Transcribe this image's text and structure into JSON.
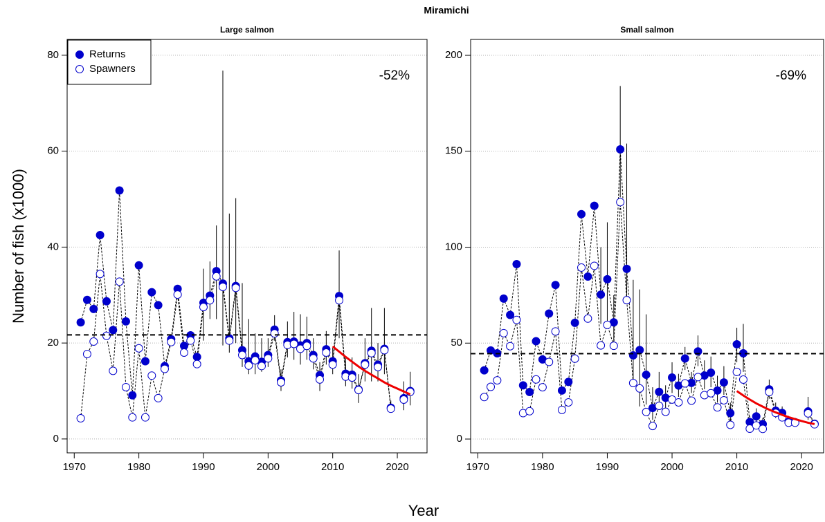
{
  "title": "Miramichi",
  "xlabel": "Year",
  "ylabel": "Number of fish (x1000)",
  "chart_data": [
    {
      "type": "line",
      "title": "Large salmon",
      "annotation": "-52%",
      "legend": "top-left",
      "grid": true,
      "xlim": [
        1968.9,
        2024.6
      ],
      "ylim": [
        -2.9,
        83.3
      ],
      "xticks": [
        1970,
        1980,
        1990,
        2000,
        2010,
        2020
      ],
      "yticks": [
        0,
        20,
        40,
        60,
        80
      ],
      "x": [
        1971,
        1972,
        1973,
        1974,
        1975,
        1976,
        1977,
        1978,
        1979,
        1980,
        1981,
        1982,
        1983,
        1984,
        1985,
        1986,
        1987,
        1988,
        1989,
        1990,
        1991,
        1992,
        1993,
        1994,
        1995,
        1996,
        1997,
        1998,
        1999,
        2000,
        2001,
        2002,
        2003,
        2004,
        2005,
        2006,
        2007,
        2008,
        2009,
        2010,
        2011,
        2012,
        2013,
        2014,
        2015,
        2016,
        2017,
        2018,
        2019,
        2020,
        2021,
        2022
      ],
      "series": [
        {
          "name": "Returns",
          "color": "#0000cc",
          "fill": "#0000cc",
          "values": [
            24.3,
            29,
            27.1,
            42.5,
            28.7,
            22.7,
            51.8,
            24.5,
            9.1,
            36.2,
            16.2,
            30.6,
            27.9,
            15.2,
            20.8,
            31.3,
            19.4,
            21.6,
            17.1,
            28.4,
            29.9,
            35,
            32.4,
            21,
            31.9,
            18.5,
            16.2,
            17.2,
            16.1,
            17.5,
            22.8,
            12.2,
            20.2,
            20.3,
            19.5,
            20,
            17.5,
            13.3,
            18.7,
            16.2,
            29.8,
            13.6,
            13.4,
            10.3,
            15.8,
            18.4,
            15.5,
            18.8,
            6.5,
            null,
            8.5,
            10
          ],
          "lower": [
            null,
            null,
            null,
            null,
            null,
            null,
            null,
            null,
            null,
            null,
            null,
            null,
            null,
            null,
            null,
            null,
            null,
            null,
            null,
            20.5,
            25,
            25,
            19.5,
            18,
            20,
            15,
            13.5,
            13.5,
            14,
            15,
            20.5,
            10,
            17,
            16.5,
            15.5,
            16.5,
            14.5,
            10,
            15.5,
            13.5,
            21,
            11,
            10.5,
            7.5,
            12,
            12,
            12,
            13.5,
            5.5,
            null,
            6,
            7
          ],
          "upper": [
            null,
            null,
            null,
            null,
            null,
            null,
            null,
            null,
            null,
            null,
            null,
            null,
            null,
            null,
            null,
            null,
            null,
            null,
            null,
            35.5,
            37,
            44.5,
            76.8,
            47,
            50.2,
            32.5,
            25,
            22,
            21,
            21,
            25.8,
            14.5,
            24.5,
            26.5,
            26,
            25.5,
            21,
            16,
            22.5,
            19,
            39.3,
            17,
            17,
            13.5,
            21,
            27.3,
            20,
            27.3,
            8,
            null,
            12,
            14
          ]
        },
        {
          "name": "Spawners",
          "color": "#0000cc",
          "fill": "#ffffff",
          "values": [
            4.3,
            17.7,
            20.3,
            34.4,
            21.5,
            14.2,
            32.8,
            10.8,
            4.5,
            18.9,
            4.5,
            13.2,
            8.5,
            14.6,
            20.2,
            30.1,
            18,
            20.5,
            15.6,
            27.5,
            28.9,
            33.9,
            31.7,
            20.5,
            31.5,
            17.5,
            15.3,
            16.4,
            15.2,
            16.8,
            22,
            11.8,
            19.6,
            19.8,
            18.8,
            19.4,
            16.8,
            12.4,
            18,
            15.5,
            28.9,
            13,
            12.8,
            10.2,
            15.5,
            17.9,
            15,
            18.5,
            6.3,
            null,
            8.2,
            9.8
          ]
        }
      ],
      "reference_line": 21.7,
      "trend": {
        "color": "#ee0000",
        "x": [
          2010,
          2011,
          2012,
          2013,
          2014,
          2015,
          2016,
          2017,
          2018,
          2019,
          2020,
          2021,
          2022
        ],
        "values": [
          19.3,
          18.2,
          17.1,
          16.1,
          15.1,
          14.2,
          13.4,
          12.6,
          11.8,
          11.1,
          10.5,
          9.9,
          9.3
        ]
      }
    },
    {
      "type": "line",
      "title": "Small salmon",
      "annotation": "-69%",
      "grid": true,
      "xlim": [
        1968.9,
        2023.4
      ],
      "ylim": [
        -7.2,
        208.3
      ],
      "xticks": [
        1970,
        1980,
        1990,
        2000,
        2010,
        2020
      ],
      "yticks": [
        0,
        50,
        100,
        150,
        200
      ],
      "x": [
        1971,
        1972,
        1973,
        1974,
        1975,
        1976,
        1977,
        1978,
        1979,
        1980,
        1981,
        1982,
        1983,
        1984,
        1985,
        1986,
        1987,
        1988,
        1989,
        1990,
        1991,
        1992,
        1993,
        1994,
        1995,
        1996,
        1997,
        1998,
        1999,
        2000,
        2001,
        2002,
        2003,
        2004,
        2005,
        2006,
        2007,
        2008,
        2009,
        2010,
        2011,
        2012,
        2013,
        2014,
        2015,
        2016,
        2017,
        2018,
        2019,
        2020,
        2021,
        2022
      ],
      "series": [
        {
          "name": "Returns",
          "color": "#0000cc",
          "fill": "#0000cc",
          "values": [
            35.8,
            46.2,
            44.7,
            73.2,
            64.7,
            91.2,
            28,
            24.5,
            51,
            41.5,
            65.4,
            80.3,
            25.3,
            29.8,
            60.6,
            117.2,
            84.7,
            121.6,
            75.3,
            83.3,
            60.8,
            151,
            88.7,
            43.6,
            46.4,
            33.5,
            16.2,
            24.6,
            21.5,
            32.1,
            27.9,
            42,
            29.3,
            45.7,
            33.1,
            34.6,
            25.3,
            29.5,
            13.5,
            49.4,
            44.7,
            8.9,
            11.8,
            7.8,
            25.9,
            14.8,
            13.6,
            9,
            8.8,
            null,
            14.4,
            8
          ],
          "lower": [
            null,
            null,
            null,
            null,
            null,
            null,
            null,
            null,
            null,
            null,
            null,
            null,
            null,
            null,
            null,
            null,
            null,
            null,
            60,
            58,
            49,
            126,
            73,
            30,
            17,
            18,
            10,
            17,
            16,
            24,
            22,
            36,
            24,
            38,
            26,
            27,
            19,
            23,
            9,
            40,
            35,
            6,
            8,
            5,
            21,
            11,
            10,
            7,
            7,
            null,
            10,
            6
          ],
          "upper": [
            null,
            null,
            null,
            null,
            null,
            null,
            null,
            null,
            null,
            null,
            null,
            null,
            null,
            null,
            null,
            null,
            null,
            null,
            100,
            113,
            75,
            184,
            154,
            83,
            78,
            65,
            27,
            35,
            28,
            40,
            34,
            48,
            35,
            54,
            41,
            43,
            33,
            38,
            19,
            58,
            60,
            12,
            16,
            11,
            31,
            19,
            17,
            12,
            11,
            null,
            22,
            10
          ]
        },
        {
          "name": "Spawners",
          "color": "#0000cc",
          "fill": "#ffffff",
          "values": [
            21.9,
            27.2,
            30.6,
            55.2,
            48.4,
            62.1,
            13.5,
            14.5,
            31.1,
            27,
            40.2,
            56.1,
            15.2,
            19.1,
            41.9,
            89.4,
            62.8,
            90.3,
            48.8,
            59.5,
            48.6,
            123.5,
            72.4,
            29.2,
            26.4,
            14.1,
            6.8,
            17.3,
            14.2,
            20.6,
            19.1,
            29,
            20,
            32.3,
            22.9,
            23.9,
            16.5,
            20.2,
            7.4,
            35,
            31,
            5.4,
            7.1,
            5.3,
            24.5,
            13.6,
            11.3,
            8.5,
            8.5,
            null,
            13.4,
            7.7
          ]
        }
      ],
      "reference_line": 44.5,
      "trend": {
        "color": "#ee0000",
        "x": [
          2010,
          2011,
          2012,
          2013,
          2014,
          2015,
          2016,
          2017,
          2018,
          2019,
          2020,
          2021,
          2022
        ],
        "values": [
          25,
          22.7,
          20.6,
          18.6,
          16.9,
          15.3,
          13.9,
          12.6,
          11.4,
          10.4,
          9.4,
          8.5,
          7.8
        ]
      }
    }
  ]
}
